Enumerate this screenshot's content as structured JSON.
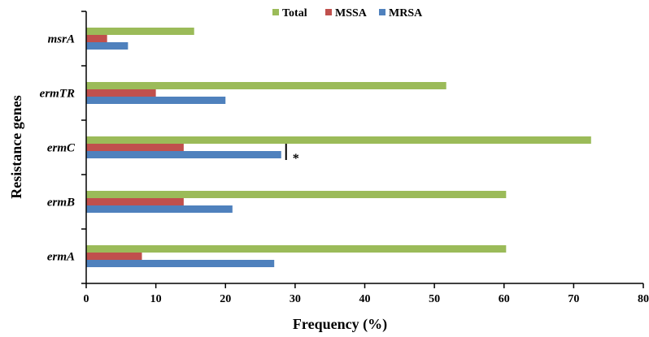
{
  "chart_data": {
    "type": "bar",
    "orientation": "horizontal",
    "categories": [
      "ermA",
      "ermB",
      "ermC",
      "ermTR",
      "msrA"
    ],
    "series": [
      {
        "name": "Total",
        "color": "#9bbb59",
        "values": [
          60.3,
          60.3,
          72.5,
          51.7,
          15.5
        ]
      },
      {
        "name": "MSSA",
        "color": "#c0504d",
        "values": [
          8,
          14,
          14,
          10,
          3
        ]
      },
      {
        "name": "MRSA",
        "color": "#4f81bd",
        "values": [
          27,
          21,
          28,
          20,
          6
        ]
      }
    ],
    "xlabel": "Frequency (%)",
    "ylabel": "Resistance genes",
    "xlim": [
      0,
      80
    ],
    "xticks": [
      "0",
      "10",
      "20",
      "30",
      "40",
      "50",
      "60",
      "70",
      "80"
    ],
    "legend": {
      "placement": "top-right",
      "entries": [
        "Total",
        "MSSA",
        "MRSA"
      ]
    },
    "grid": false,
    "annotations": [
      {
        "category": "ermC",
        "series": "MRSA",
        "x": 28.7,
        "text": "*"
      }
    ]
  }
}
